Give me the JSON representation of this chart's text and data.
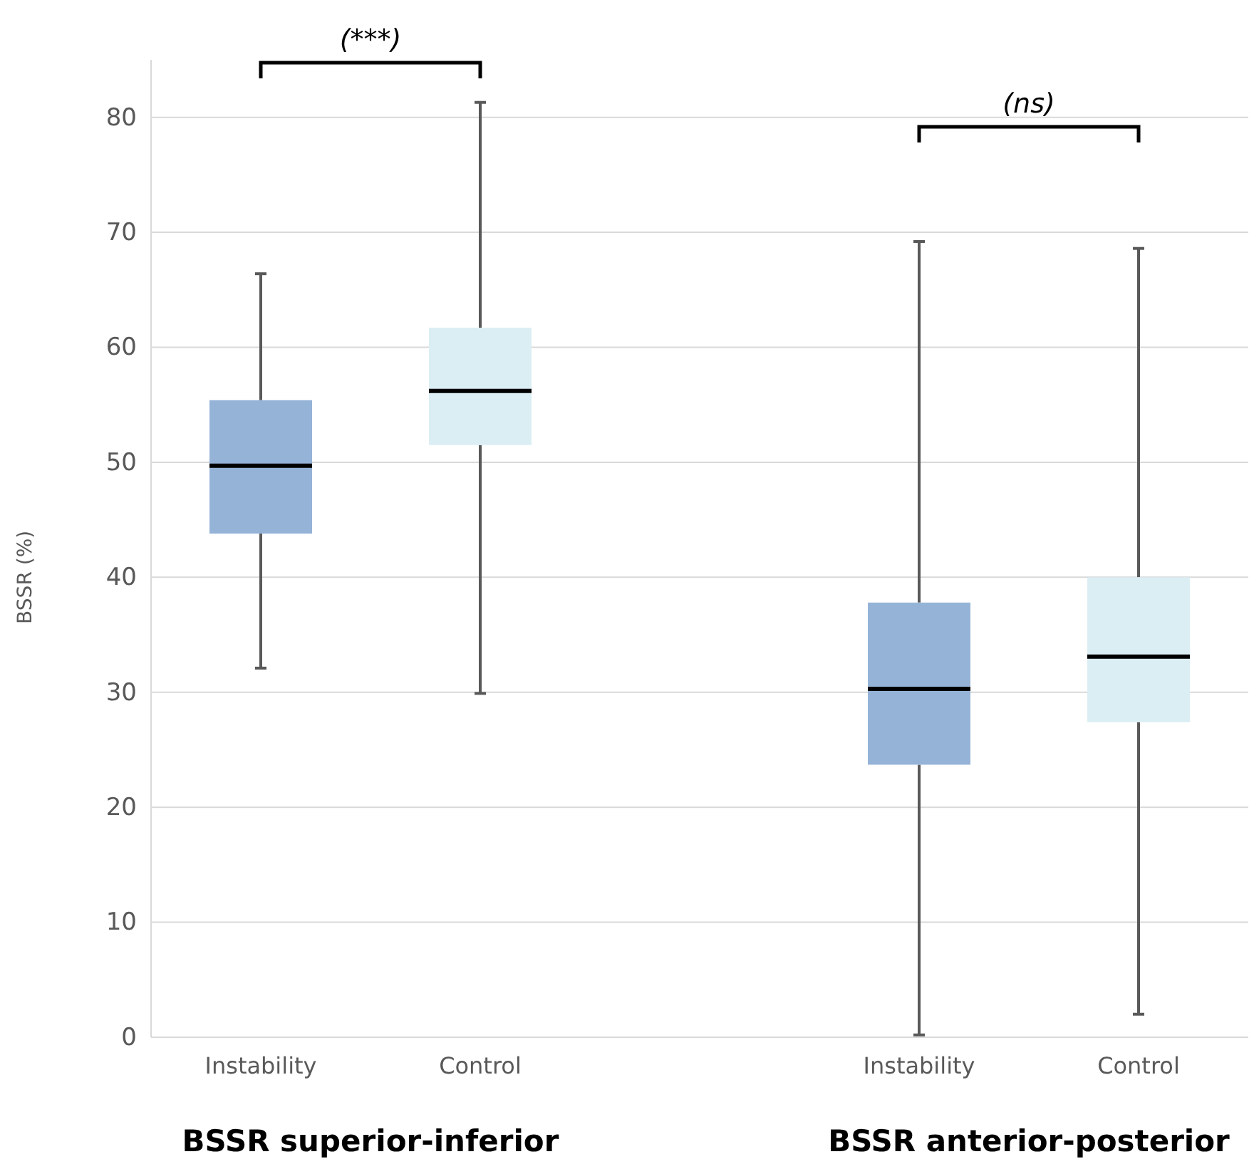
{
  "chart_data": {
    "type": "box",
    "ylabel": "BSSR (%)",
    "categories": [
      "Instability",
      "Control",
      null,
      "Instability",
      "Control"
    ],
    "boxes": [
      {
        "low": 32.1,
        "q1": 43.8,
        "median": 49.7,
        "q3": 55.4,
        "high": 66.4
      },
      {
        "low": 29.9,
        "q1": 51.5,
        "median": 56.2,
        "q3": 61.7,
        "high": 81.3
      },
      null,
      {
        "low": 0.2,
        "q1": 23.7,
        "median": 30.3,
        "q3": 37.8,
        "high": 69.2
      },
      {
        "low": 2.0,
        "q1": 27.4,
        "median": 33.1,
        "q3": 40.0,
        "high": 68.6
      }
    ],
    "colors": [
      "#95b3d7",
      "#dbeef4",
      null,
      "#95b3d7",
      "#dbeef4"
    ],
    "ylim": [
      0,
      85
    ],
    "yticks": [
      0,
      10,
      20,
      30,
      40,
      50,
      60,
      70,
      80
    ],
    "grid": "y",
    "annotations": [
      "(***)",
      "(ns)",
      "BSSR superior-inferior",
      "BSSR anterior-posterior"
    ]
  }
}
